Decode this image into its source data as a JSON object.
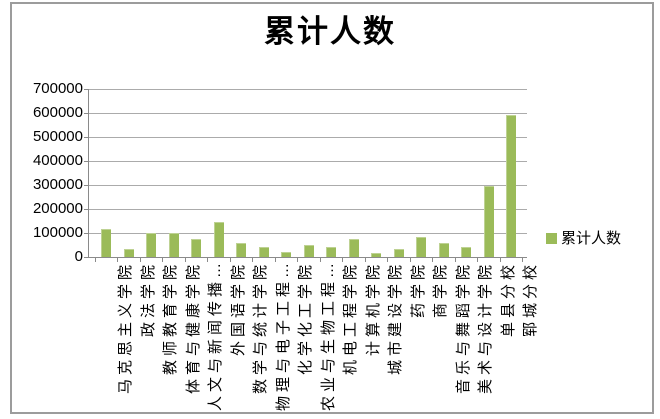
{
  "chart_data": {
    "type": "bar",
    "title": "累计人数",
    "categories": [
      "马克思主义学院",
      "政法学院",
      "教师教育学院",
      "体育与健康学院",
      "人文与新闻传播…",
      "外国语学院",
      "数学与统计学院",
      "物理与电子工程…",
      "化学化工学院",
      "农业与生物工程…",
      "机电工程学院",
      "计算机学院",
      "城市建设学院",
      "药学院",
      "商学院",
      "音乐与舞蹈学院",
      "美术与设计学院",
      "单县分校",
      "郓城分校"
    ],
    "values": [
      115000,
      33000,
      100000,
      98000,
      75000,
      145000,
      58000,
      40000,
      20000,
      48000,
      41000,
      77000,
      15000,
      35000,
      82000,
      58000,
      42000,
      295000,
      590000
    ],
    "series_name": "累计人数",
    "xlabel": "",
    "ylabel": "",
    "ylim": [
      0,
      700000
    ],
    "ytick_step": 100000,
    "y_ticks": [
      "0",
      "100000",
      "200000",
      "300000",
      "400000",
      "500000",
      "600000",
      "700000"
    ],
    "grid": true,
    "legend_position": "right",
    "legend_label": "累计人数",
    "bar_color": "#9BBB59",
    "gridline_color": "#ababab",
    "axis_color": "#8a8a8a"
  }
}
